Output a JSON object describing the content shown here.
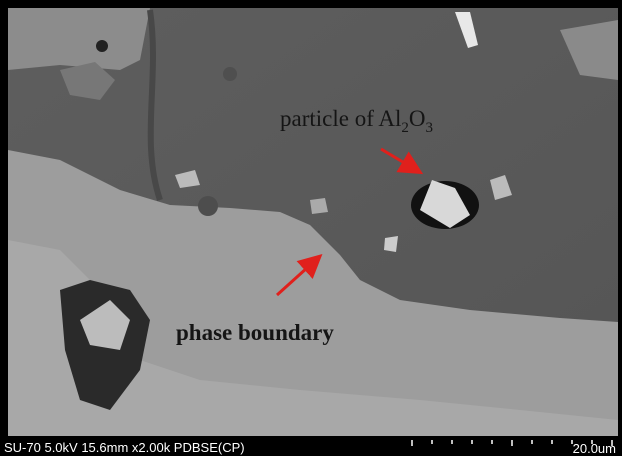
{
  "annotations": {
    "particle": [
      "particle of Al",
      "2",
      "O",
      "3"
    ],
    "boundary": "phase boundary"
  },
  "info_bar": {
    "instrument": "SU-70 5.0kV 15.6mm x2.00k PDBSE(CP)",
    "scale": "20.0um"
  }
}
